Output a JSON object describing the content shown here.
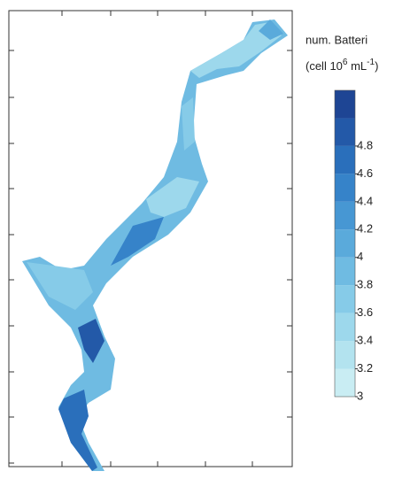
{
  "legend": {
    "title": "num. Batteri",
    "unit_parts": [
      "(cell 10",
      "6",
      " mL",
      "-1",
      ")"
    ]
  },
  "colorbar": {
    "range": [
      3,
      5.2
    ],
    "levels": [
      3,
      3.2,
      3.4,
      3.6,
      3.8,
      4,
      4.2,
      4.4,
      4.6,
      4.8,
      5,
      5.2
    ],
    "colors": [
      "#c9edf3",
      "#b3e3ef",
      "#9dd8ec",
      "#86cbe8",
      "#6fbbe2",
      "#5aaadb",
      "#4797d3",
      "#3683c9",
      "#2a6fbb",
      "#2359a8",
      "#1e4594"
    ],
    "ticks": [
      3,
      3.2,
      3.4,
      3.6,
      3.8,
      4,
      4.2,
      4.4,
      4.6,
      4.8
    ]
  }
}
